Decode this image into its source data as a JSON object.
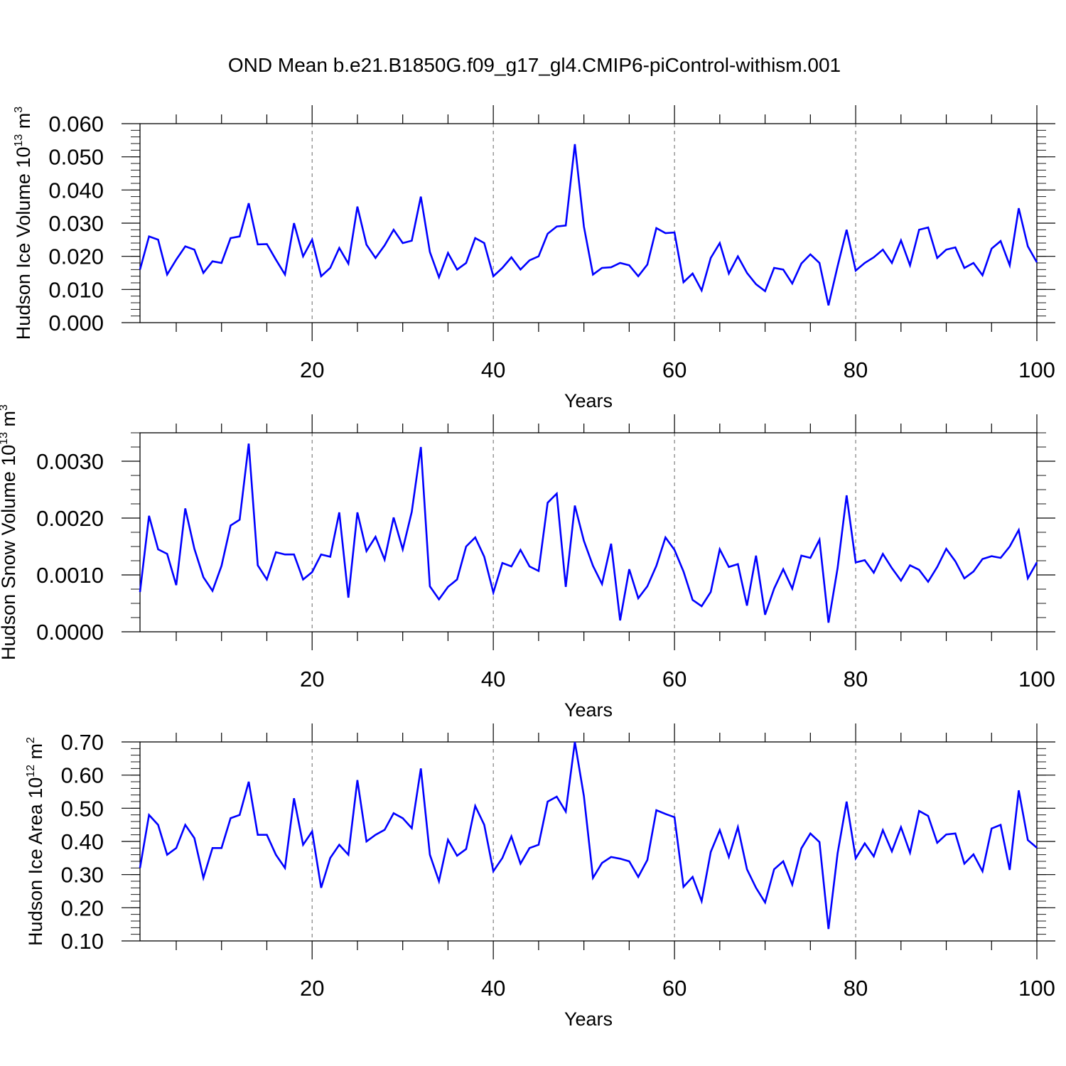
{
  "title": "OND Mean b.e21.B1850G.f09_g17_gl4.CMIP6-piControl-withism.001",
  "colors": {
    "line": "#0000ff",
    "axis": "#000000",
    "grid": "#666666"
  },
  "chart_data": [
    {
      "type": "line",
      "xlabel": "Years",
      "ylabel": {
        "text": "Hudson Ice Volume 10",
        "exp": "13",
        "unit": " m",
        "unit_exp": "3"
      },
      "xlim": [
        1,
        100
      ],
      "ylim": [
        0,
        0.06
      ],
      "x_ticks": [
        "20",
        "40",
        "60",
        "80",
        "100"
      ],
      "y_ticks": [
        "0.000",
        "0.010",
        "0.020",
        "0.030",
        "0.040",
        "0.050",
        "0.060"
      ],
      "y_major_step": 0.01,
      "y_minor_step": 0.002,
      "grid": "dashed vertical at x major ticks",
      "values": [
        0.016,
        0.026,
        0.025,
        0.0145,
        0.019,
        0.023,
        0.022,
        0.015,
        0.0185,
        0.018,
        0.0255,
        0.026,
        0.036,
        0.0236,
        0.0237,
        0.019,
        0.0145,
        0.03,
        0.02,
        0.025,
        0.014,
        0.0165,
        0.0225,
        0.0178,
        0.035,
        0.0235,
        0.0195,
        0.0233,
        0.028,
        0.024,
        0.0247,
        0.038,
        0.0213,
        0.0137,
        0.021,
        0.016,
        0.018,
        0.0255,
        0.024,
        0.014,
        0.0165,
        0.0197,
        0.016,
        0.0188,
        0.02,
        0.0268,
        0.029,
        0.0293,
        0.0538,
        0.029,
        0.0145,
        0.0165,
        0.0167,
        0.018,
        0.0173,
        0.014,
        0.0175,
        0.0285,
        0.027,
        0.0272,
        0.0122,
        0.0148,
        0.0097,
        0.0195,
        0.024,
        0.0148,
        0.02,
        0.015,
        0.0116,
        0.0095,
        0.0165,
        0.016,
        0.0118,
        0.0178,
        0.0206,
        0.018,
        0.0052,
        0.017,
        0.028,
        0.0157,
        0.018,
        0.0197,
        0.022,
        0.018,
        0.0248,
        0.0173,
        0.028,
        0.0287,
        0.0195,
        0.022,
        0.0227,
        0.0165,
        0.018,
        0.0143,
        0.0223,
        0.0246,
        0.0173,
        0.0345,
        0.023,
        0.0182
      ]
    },
    {
      "type": "line",
      "xlabel": "Years",
      "ylabel": {
        "text": "Hudson Snow Volume 10",
        "exp": "13",
        "unit": " m",
        "unit_exp": "3"
      },
      "xlim": [
        1,
        100
      ],
      "ylim": [
        0,
        0.0035
      ],
      "x_ticks": [
        "20",
        "40",
        "60",
        "80",
        "100"
      ],
      "y_ticks": [
        "0.0000",
        "0.0010",
        "0.0020",
        "0.0030"
      ],
      "y_major_step": 0.001,
      "y_minor_step": 0.00025,
      "grid": "dashed vertical at x major ticks",
      "values": [
        0.0007,
        0.00204,
        0.00145,
        0.00137,
        0.00082,
        0.00217,
        0.00146,
        0.00096,
        0.00072,
        0.00116,
        0.00187,
        0.00197,
        0.00331,
        0.00117,
        0.00092,
        0.0014,
        0.00136,
        0.00136,
        0.00092,
        0.00105,
        0.00136,
        0.00132,
        0.0021,
        0.0006,
        0.0021,
        0.00142,
        0.00167,
        0.00127,
        0.00201,
        0.00145,
        0.00211,
        0.00325,
        0.0008,
        0.00057,
        0.00079,
        0.00092,
        0.0015,
        0.00166,
        0.00132,
        0.00069,
        0.00121,
        0.00115,
        0.00144,
        0.00115,
        0.00107,
        0.00227,
        0.00243,
        0.00079,
        0.00222,
        0.0016,
        0.00116,
        0.00084,
        0.00155,
        0.0002,
        0.0011,
        0.00059,
        0.0008,
        0.00116,
        0.00166,
        0.00144,
        0.00106,
        0.00056,
        0.00045,
        0.0007,
        0.00145,
        0.00114,
        0.00119,
        0.00046,
        0.00134,
        0.0003,
        0.00076,
        0.0011,
        0.00076,
        0.00134,
        0.0013,
        0.00162,
        0.00016,
        0.00112,
        0.0024,
        0.00122,
        0.00126,
        0.00104,
        0.00137,
        0.00112,
        0.0009,
        0.00117,
        0.00109,
        0.00088,
        0.00114,
        0.00146,
        0.00124,
        0.00094,
        0.00106,
        0.00128,
        0.00133,
        0.0013,
        0.0015,
        0.00179,
        0.00094,
        0.00122
      ]
    },
    {
      "type": "line",
      "xlabel": "Years",
      "ylabel": {
        "text": "Hudson Ice Area 10",
        "exp": "12",
        "unit": " m",
        "unit_exp": "2"
      },
      "xlim": [
        1,
        100
      ],
      "ylim": [
        0.1,
        0.7
      ],
      "x_ticks": [
        "20",
        "40",
        "60",
        "80",
        "100"
      ],
      "y_ticks": [
        "0.10",
        "0.20",
        "0.30",
        "0.40",
        "0.50",
        "0.60",
        "0.70"
      ],
      "y_major_step": 0.1,
      "y_minor_step": 0.02,
      "grid": "dashed vertical at x major ticks",
      "values": [
        0.32,
        0.48,
        0.45,
        0.36,
        0.38,
        0.45,
        0.41,
        0.29,
        0.38,
        0.38,
        0.47,
        0.48,
        0.58,
        0.42,
        0.42,
        0.36,
        0.32,
        0.53,
        0.39,
        0.43,
        0.26,
        0.35,
        0.39,
        0.36,
        0.585,
        0.4,
        0.42,
        0.435,
        0.485,
        0.47,
        0.44,
        0.62,
        0.36,
        0.28,
        0.405,
        0.357,
        0.377,
        0.507,
        0.45,
        0.31,
        0.35,
        0.415,
        0.333,
        0.38,
        0.39,
        0.52,
        0.535,
        0.49,
        0.7,
        0.537,
        0.29,
        0.335,
        0.353,
        0.348,
        0.34,
        0.293,
        0.344,
        0.494,
        0.483,
        0.473,
        0.263,
        0.293,
        0.22,
        0.368,
        0.434,
        0.353,
        0.443,
        0.316,
        0.26,
        0.216,
        0.316,
        0.34,
        0.27,
        0.379,
        0.424,
        0.398,
        0.136,
        0.364,
        0.52,
        0.349,
        0.394,
        0.355,
        0.434,
        0.37,
        0.443,
        0.366,
        0.492,
        0.477,
        0.396,
        0.421,
        0.424,
        0.333,
        0.361,
        0.31,
        0.439,
        0.45,
        0.314,
        0.554,
        0.404,
        0.381
      ]
    }
  ]
}
